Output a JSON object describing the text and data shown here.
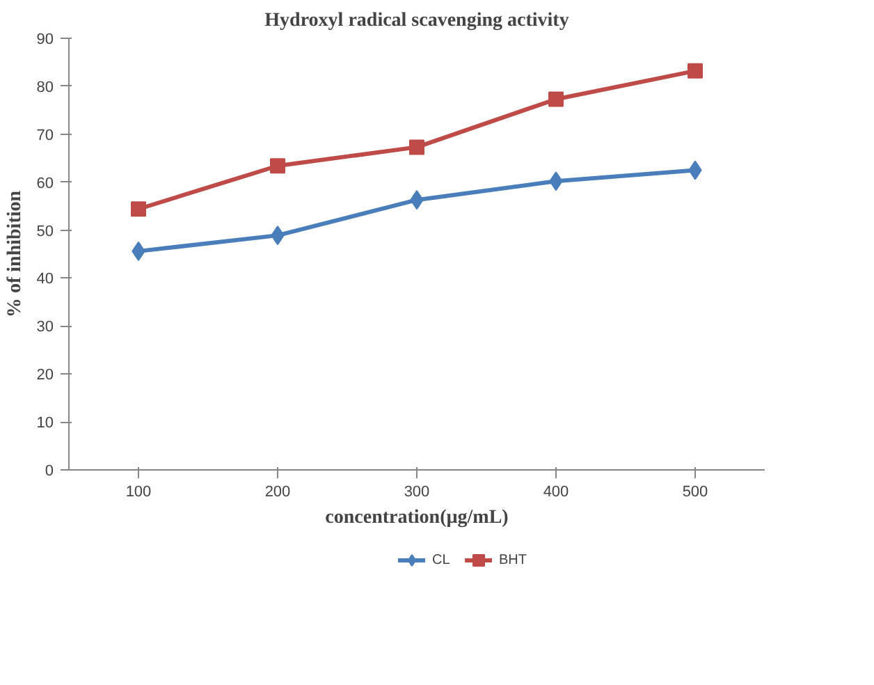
{
  "chart_data": {
    "type": "line",
    "title": "Hydroxyl radical scavenging activity",
    "xlabel": "concentration(µg/mL)",
    "ylabel": "% of inhibition",
    "categories": [
      "100",
      "200",
      "300",
      "400",
      "500"
    ],
    "series": [
      {
        "name": "CL",
        "color": "#4a7ebb",
        "marker": "diamond",
        "values": [
          45.6,
          48.9,
          56.3,
          60.2,
          62.5
        ]
      },
      {
        "name": "BHT",
        "color": "#be4b48",
        "marker": "square",
        "values": [
          54.4,
          63.4,
          67.3,
          77.3,
          83.2
        ]
      }
    ],
    "ylim": [
      0,
      90
    ],
    "yticks": [
      0,
      10,
      20,
      30,
      40,
      50,
      60,
      70,
      80,
      90
    ],
    "grid": false,
    "legend": "bottom",
    "line_style": "solid"
  }
}
